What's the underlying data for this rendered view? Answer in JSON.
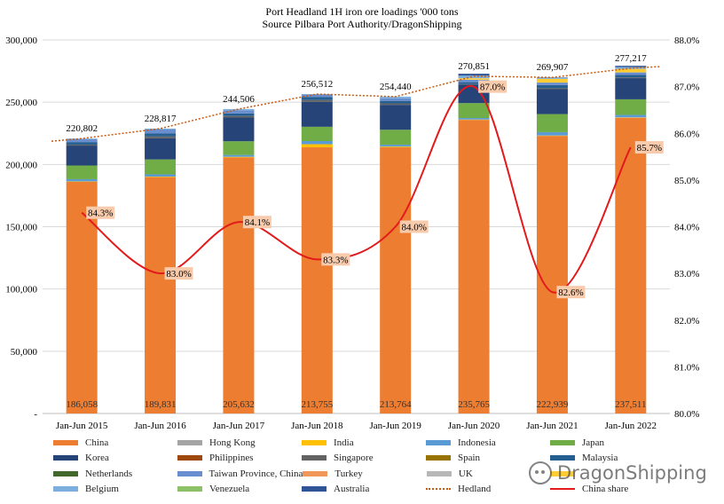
{
  "chart_data": {
    "type": "bar",
    "title": "Port Headland 1H iron ore loadings '000 tons",
    "subtitle": "Source Pilbara Port Authority/DragonShipping",
    "categories": [
      "Jan-Jun 2015",
      "Jan-Jun 2016",
      "Jan-Jun 2017",
      "Jan-Jun 2018",
      "Jan-Jun 2019",
      "Jan-Jun 2020",
      "Jan-Jun 2021",
      "Jan-Jun 2022"
    ],
    "ylim": [
      0,
      300000
    ],
    "y_ticks": [
      "-",
      "50,000",
      "100,000",
      "150,000",
      "200,000",
      "250,000",
      "300,000"
    ],
    "y2lim": [
      80.0,
      88.0
    ],
    "y2_ticks": [
      "80.0%",
      "81.0%",
      "82.0%",
      "83.0%",
      "84.0%",
      "85.0%",
      "86.0%",
      "87.0%",
      "88.0%"
    ],
    "series": [
      {
        "name": "China",
        "color": "#ED7D31",
        "values": [
          186058,
          189831,
          205632,
          213755,
          213764,
          235765,
          222939,
          237511
        ],
        "labels": [
          "186,058",
          "189,831",
          "205,632",
          "213,755",
          "213,764",
          "235,765",
          "222,939",
          "237,511"
        ]
      },
      {
        "name": "Hong Kong",
        "color": "#A5A5A5",
        "values": [
          0,
          0,
          0,
          0,
          0,
          0,
          0,
          0
        ]
      },
      {
        "name": "India",
        "color": "#FFC000",
        "values": [
          300,
          400,
          500,
          2500,
          600,
          300,
          300,
          300
        ]
      },
      {
        "name": "Indonesia",
        "color": "#5B9BD5",
        "values": [
          1800,
          1800,
          1500,
          2500,
          1500,
          1200,
          2700,
          2000
        ]
      },
      {
        "name": "Japan",
        "color": "#70AD47",
        "values": [
          11000,
          12000,
          11000,
          11500,
          12000,
          12000,
          14500,
          12500
        ]
      },
      {
        "name": "Korea",
        "color": "#264478",
        "values": [
          16000,
          17000,
          19000,
          20000,
          20000,
          15000,
          20000,
          17000
        ]
      },
      {
        "name": "Philippines",
        "color": "#9E480E",
        "values": [
          0,
          0,
          0,
          0,
          0,
          0,
          0,
          0
        ]
      },
      {
        "name": "Singapore",
        "color": "#636363",
        "values": [
          800,
          1500,
          1300,
          1500,
          1200,
          300,
          800,
          600
        ]
      },
      {
        "name": "Spain",
        "color": "#997300",
        "values": [
          0,
          0,
          0,
          0,
          0,
          0,
          0,
          0
        ]
      },
      {
        "name": "Malaysia",
        "color": "#255E91",
        "values": [
          2000,
          2500,
          2000,
          2500,
          2000,
          1500,
          2500,
          2000
        ]
      },
      {
        "name": "Netherlands",
        "color": "#43682B",
        "values": [
          0,
          0,
          0,
          0,
          0,
          0,
          0,
          0
        ]
      },
      {
        "name": "Taiwan Province, China",
        "color": "#698ED0",
        "values": [
          2500,
          3000,
          2500,
          2000,
          2000,
          2000,
          2000,
          2000
        ]
      },
      {
        "name": "Turkey",
        "color": "#F1975A",
        "values": [
          0,
          0,
          0,
          0,
          0,
          0,
          0,
          0
        ]
      },
      {
        "name": "UK",
        "color": "#B7B7B7",
        "values": [
          0,
          0,
          0,
          0,
          0,
          0,
          0,
          0
        ]
      },
      {
        "name": "",
        "color": "#FFCD33",
        "values": [
          0,
          0,
          0,
          0,
          0,
          1200,
          3000,
          2800
        ]
      },
      {
        "name": "Belgium",
        "color": "#7CAFDD",
        "values": [
          344,
          786,
          1074,
          257,
          1376,
          2084,
          868,
          1506
        ]
      },
      {
        "name": "Venezuela",
        "color": "#8CC168",
        "values": [
          0,
          0,
          0,
          0,
          0,
          0,
          0,
          0
        ]
      },
      {
        "name": "Australia",
        "color": "#2F5597",
        "values": [
          0,
          0,
          0,
          0,
          0,
          1500,
          300,
          1000
        ]
      }
    ],
    "hedland": {
      "name": "Hedland",
      "color": "#C55A11",
      "values": [
        220802,
        228817,
        244506,
        256512,
        254440,
        270851,
        269907,
        277217
      ],
      "labels": [
        "220,802",
        "228,817",
        "244,506",
        "256,512",
        "254,440",
        "270,851",
        "269,907",
        "277,217"
      ]
    },
    "china_share": {
      "name": "China share",
      "color": "#E31A1C",
      "values": [
        84.3,
        83.0,
        84.1,
        83.3,
        84.0,
        87.0,
        82.6,
        85.7
      ],
      "labels": [
        "84.3%",
        "83.0%",
        "84.1%",
        "83.3%",
        "84.0%",
        "87.0%",
        "82.6%",
        "85.7%"
      ]
    },
    "legend": [
      "China",
      "Hong Kong",
      "India",
      "Indonesia",
      "Japan",
      "Korea",
      "Philippines",
      "Singapore",
      "Spain",
      "Malaysia",
      "Netherlands",
      "Taiwan Province, China",
      "Turkey",
      "UK",
      "",
      "Belgium",
      "Venezuela",
      "Australia",
      "Hedland",
      "China share"
    ],
    "grid": true,
    "legend_position": "bottom"
  },
  "watermark": "DragonShipping",
  "watermark_icon": "wechat-icon"
}
